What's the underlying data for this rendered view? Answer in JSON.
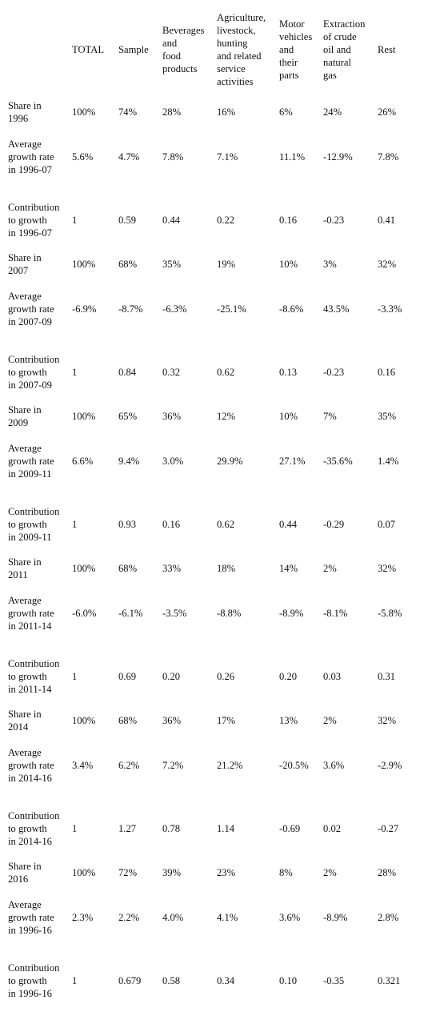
{
  "table": {
    "headers": [
      "",
      "TOTAL",
      "Sample",
      "Beverages\n and\nfood\nproducts",
      "Agriculture,\n livestock,\nhunting\nand related\nservice\nactivities",
      "Motor\nvehicles\n and\ntheir\nparts",
      "Extraction\n of crude\noil and\nnatural\ngas",
      "Rest"
    ],
    "rows": [
      [
        "Share in\n1996",
        "100%",
        "74%",
        "28%",
        "16%",
        "6%",
        "24%",
        "26%"
      ],
      [
        "Average\ngrowth rate\nin 1996-07",
        "5.6%",
        "4.7%",
        "7.8%",
        "7.1%",
        "11.1%",
        "-12.9%",
        "7.8%"
      ],
      [
        "Contribution\n to growth\nin 1996-07",
        "1",
        "0.59",
        "0.44",
        "0.22",
        "0.16",
        "-0.23",
        "0.41"
      ],
      [
        "Share in\n2007",
        "100%",
        "68%",
        "35%",
        "19%",
        "10%",
        "3%",
        "32%"
      ],
      [
        "Average\ngrowth rate\nin 2007-09",
        "-6.9%",
        "-8.7%",
        "-6.3%",
        "-25.1%",
        "-8.6%",
        "43.5%",
        "-3.3%"
      ],
      [
        "Contribution\n to growth\nin 2007-09",
        "1",
        "0.84",
        "0.32",
        "0.62",
        "0.13",
        "-0.23",
        "0.16"
      ],
      [
        "Share in\n2009",
        "100%",
        "65%",
        "36%",
        "12%",
        "10%",
        "7%",
        "35%"
      ],
      [
        "Average\ngrowth rate\nin 2009-11",
        "6.6%",
        "9.4%",
        "3.0%",
        "29.9%",
        "27.1%",
        "-35.6%",
        "1.4%"
      ],
      [
        "Contribution\n to growth\nin 2009-11",
        "1",
        "0.93",
        "0.16",
        "0.62",
        "0.44",
        "-0.29",
        "0.07"
      ],
      [
        "Share in\n2011",
        "100%",
        "68%",
        "33%",
        "18%",
        "14%",
        "2%",
        "32%"
      ],
      [
        "Average\ngrowth rate\nin 2011-14",
        "-6.0%",
        "-6.1%",
        "-3.5%",
        "-8.8%",
        "-8.9%",
        "-8.1%",
        "-5.8%"
      ],
      [
        "Contribution\n to growth\nin 2011-14",
        "1",
        "0.69",
        "0.20",
        "0.26",
        "0.20",
        "0.03",
        "0.31"
      ],
      [
        "Share in\n2014",
        "100%",
        "68%",
        "36%",
        "17%",
        "13%",
        "2%",
        "32%"
      ],
      [
        "Average\ngrowth rate\nin 2014-16",
        "3.4%",
        "6.2%",
        "7.2%",
        "21.2%",
        "-20.5%",
        "3.6%",
        "-2.9%"
      ],
      [
        "Contribution\n to growth\nin 2014-16",
        "1",
        "1.27",
        "0.78",
        "1.14",
        "-0.69",
        "0.02",
        "-0.27"
      ],
      [
        "Share in\n2016",
        "100%",
        "72%",
        "39%",
        "23%",
        "8%",
        "2%",
        "28%"
      ],
      [
        "Average\ngrowth rate\nin 1996-16",
        "2.3%",
        "2.2%",
        "4.0%",
        "4.1%",
        "3.6%",
        "-8.9%",
        "2.8%"
      ],
      [
        "Contribution\n to growth\nin 1996-16",
        "1",
        "0.679",
        "0.58",
        "0.34",
        "0.10",
        "-0.35",
        "0.321"
      ]
    ]
  }
}
